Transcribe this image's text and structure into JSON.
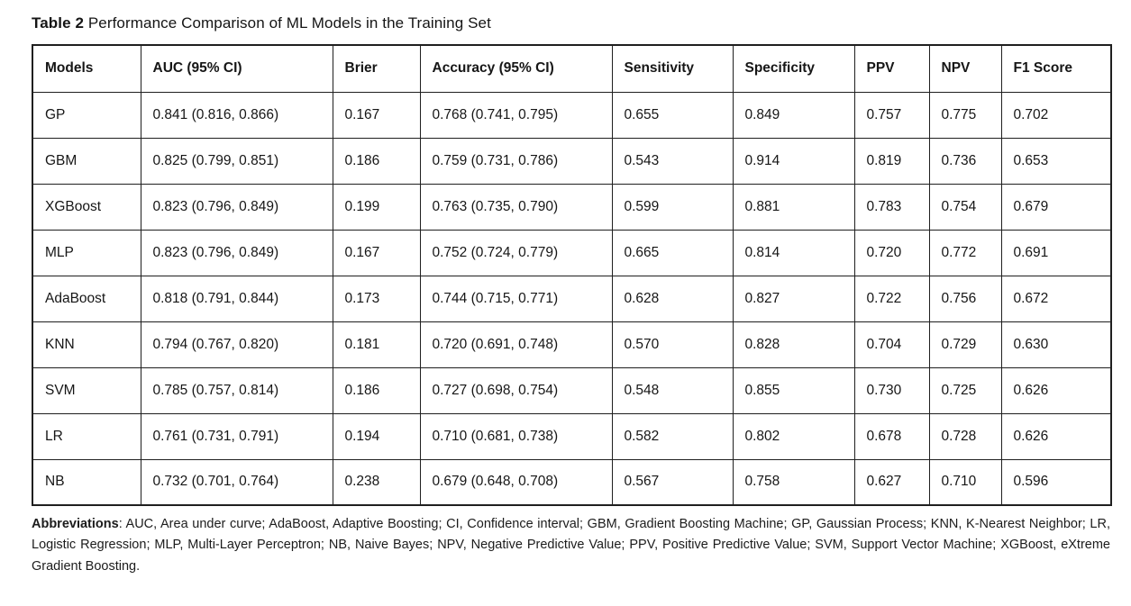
{
  "caption": {
    "label": "Table 2",
    "text": " Performance Comparison of ML Models in the Training Set"
  },
  "chart_data": {
    "type": "table",
    "title": "Table 2 Performance Comparison of ML Models in the Training Set",
    "columns": [
      "Models",
      "AUC (95% CI)",
      "Brier",
      "Accuracy (95% CI)",
      "Sensitivity",
      "Specificity",
      "PPV",
      "NPV",
      "F1 Score"
    ],
    "rows": [
      [
        "GP",
        "0.841 (0.816, 0.866)",
        "0.167",
        "0.768 (0.741, 0.795)",
        "0.655",
        "0.849",
        "0.757",
        "0.775",
        "0.702"
      ],
      [
        "GBM",
        "0.825 (0.799, 0.851)",
        "0.186",
        "0.759 (0.731, 0.786)",
        "0.543",
        "0.914",
        "0.819",
        "0.736",
        "0.653"
      ],
      [
        "XGBoost",
        "0.823 (0.796, 0.849)",
        "0.199",
        "0.763 (0.735, 0.790)",
        "0.599",
        "0.881",
        "0.783",
        "0.754",
        "0.679"
      ],
      [
        "MLP",
        "0.823 (0.796, 0.849)",
        "0.167",
        "0.752 (0.724, 0.779)",
        "0.665",
        "0.814",
        "0.720",
        "0.772",
        "0.691"
      ],
      [
        "AdaBoost",
        "0.818 (0.791, 0.844)",
        "0.173",
        "0.744 (0.715, 0.771)",
        "0.628",
        "0.827",
        "0.722",
        "0.756",
        "0.672"
      ],
      [
        "KNN",
        "0.794 (0.767, 0.820)",
        "0.181",
        "0.720 (0.691, 0.748)",
        "0.570",
        "0.828",
        "0.704",
        "0.729",
        "0.630"
      ],
      [
        "SVM",
        "0.785 (0.757, 0.814)",
        "0.186",
        "0.727 (0.698, 0.754)",
        "0.548",
        "0.855",
        "0.730",
        "0.725",
        "0.626"
      ],
      [
        "LR",
        "0.761 (0.731, 0.791)",
        "0.194",
        "0.710 (0.681, 0.738)",
        "0.582",
        "0.802",
        "0.678",
        "0.728",
        "0.626"
      ],
      [
        "NB",
        "0.732 (0.701, 0.764)",
        "0.238",
        "0.679 (0.648, 0.708)",
        "0.567",
        "0.758",
        "0.627",
        "0.710",
        "0.596"
      ]
    ]
  },
  "footnote": {
    "label": "Abbreviations",
    "text": ": AUC, Area under curve; AdaBoost, Adaptive Boosting; CI, Confidence interval; GBM, Gradient Boosting Machine; GP, Gaussian Process; KNN, K-Nearest Neighbor; LR, Logistic Regression; MLP, Multi-Layer Perceptron; NB, Naive Bayes; NPV, Negative Predictive Value; PPV, Positive Predictive Value; SVM, Support Vector Machine; XGBoost, eXtreme Gradient Boosting."
  },
  "colors": {
    "text": "#1b1b1b",
    "border": "#1f1f1f",
    "background": "#ffffff"
  }
}
